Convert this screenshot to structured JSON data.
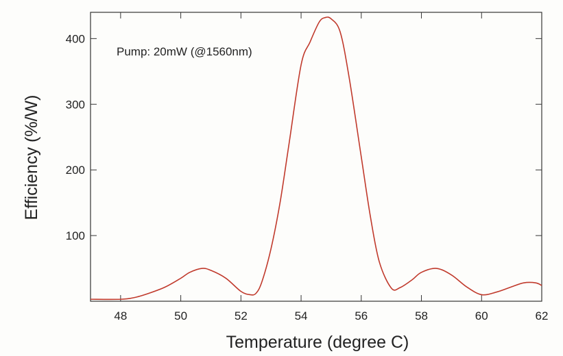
{
  "chart_data": {
    "type": "line",
    "title": "",
    "xlabel": "Temperature (degree C)",
    "ylabel": "Efficiency (%/W)",
    "annotation": "Pump: 20mW (@1560nm)",
    "xlim": [
      47,
      62
    ],
    "ylim": [
      0,
      440
    ],
    "grid": false,
    "x_ticks": [
      48,
      50,
      52,
      54,
      56,
      58,
      60,
      62
    ],
    "y_ticks": [
      100,
      200,
      300,
      400
    ],
    "series": [
      {
        "color": "#c0392b",
        "x": [
          47.0,
          48.0,
          48.5,
          49.0,
          49.5,
          50.0,
          50.3,
          50.7,
          51.0,
          51.5,
          52.0,
          52.3,
          52.5,
          52.7,
          53.0,
          53.3,
          53.6,
          54.0,
          54.3,
          54.6,
          54.8,
          55.0,
          55.3,
          55.6,
          56.0,
          56.3,
          56.6,
          57.0,
          57.3,
          57.7,
          58.0,
          58.5,
          59.0,
          59.5,
          60.0,
          60.5,
          61.0,
          61.4,
          61.8,
          62.0
        ],
        "y": [
          3,
          3,
          6,
          13,
          22,
          35,
          44,
          50,
          47,
          35,
          15,
          10,
          12,
          30,
          80,
          150,
          240,
          360,
          395,
          425,
          432,
          430,
          410,
          340,
          220,
          130,
          60,
          20,
          21,
          33,
          44,
          50,
          40,
          22,
          10,
          14,
          22,
          28,
          28,
          24
        ]
      }
    ]
  }
}
